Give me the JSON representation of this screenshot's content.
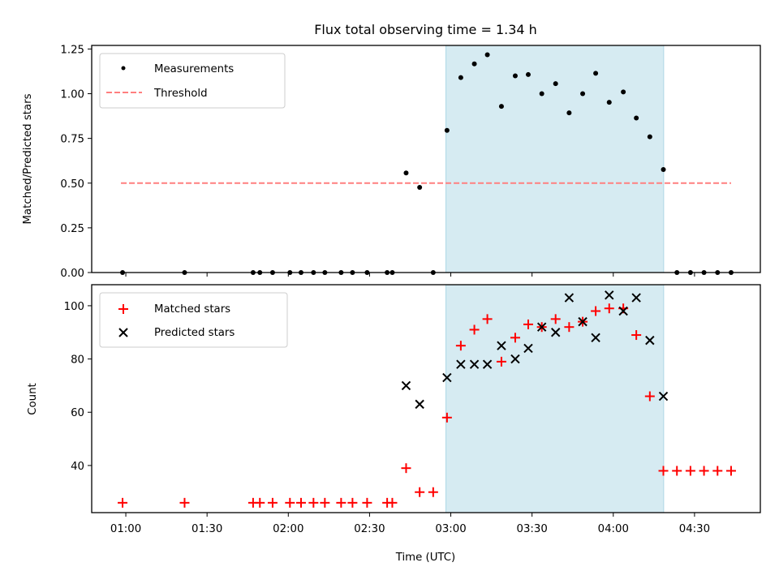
{
  "chart_data": [
    {
      "type": "scatter",
      "panel": "top",
      "title": "Flux total observing time = 1.34 h",
      "xlabel": "",
      "ylabel": "Matched/Predicted stars",
      "ylim": [
        0,
        1.27
      ],
      "yticks": [
        0,
        0.25,
        0.5,
        0.75,
        1.0,
        1.25
      ],
      "ytick_labels": [
        "0.00",
        "0.25",
        "0.50",
        "0.75",
        "1.00",
        "1.25"
      ],
      "legend": {
        "placement": "top-left",
        "entries": [
          "Measurements",
          "Threshold"
        ]
      },
      "series": [
        {
          "name": "Measurements",
          "marker": "dot",
          "color": "#000000",
          "x": [
            "00:58.8",
            "01:21.7",
            "01:47.0",
            "01:49.5",
            "01:54.2",
            "02:00.6",
            "02:04.7",
            "02:09.3",
            "02:13.5",
            "02:19.5",
            "02:23.7",
            "02:29.1",
            "02:36.5",
            "02:38.4",
            "02:43.5",
            "02:48.5",
            "02:53.5",
            "02:58.6",
            "03:03.7",
            "03:08.7",
            "03:13.5",
            "03:18.7",
            "03:23.8",
            "03:28.6",
            "03:33.6",
            "03:38.7",
            "03:43.7",
            "03:48.7",
            "03:53.5",
            "03:58.5",
            "04:03.7",
            "04:08.5",
            "04:13.5",
            "04:18.5",
            "04:23.5",
            "04:28.5",
            "04:33.5",
            "04:38.5",
            "04:43.5"
          ],
          "values": [
            0,
            0,
            0,
            0,
            0,
            0,
            0,
            0,
            0,
            0,
            0,
            0,
            0,
            0,
            0.557,
            0.476,
            0,
            0.795,
            1.09,
            1.167,
            1.218,
            0.929,
            1.1,
            1.107,
            1.0,
            1.056,
            0.893,
            1.0,
            1.114,
            0.952,
            1.01,
            0.864,
            0.759,
            0.576,
            0,
            0,
            0,
            0,
            0
          ]
        }
      ],
      "threshold": {
        "name": "Threshold",
        "value": 0.5,
        "color": "#ff7f7f",
        "style": "dashed",
        "x_range": [
          "00:58.2",
          "04:43.5"
        ]
      },
      "span": {
        "start": "02:58.2",
        "end": "04:18.6",
        "color": "#add8e6"
      }
    },
    {
      "type": "scatter",
      "panel": "bottom",
      "title": "",
      "xlabel": "Time (UTC)",
      "ylabel": "Count",
      "ylim": [
        22.3,
        107.9
      ],
      "yticks": [
        40,
        60,
        80,
        100
      ],
      "ytick_labels": [
        "40",
        "60",
        "80",
        "100"
      ],
      "xlim": [
        "00:47.4",
        "04:54.3"
      ],
      "xticks": [
        "01:00",
        "01:30",
        "02:00",
        "02:30",
        "03:00",
        "03:30",
        "04:00",
        "04:30"
      ],
      "legend": {
        "placement": "top-left",
        "entries": [
          "Matched stars",
          "Predicted stars"
        ]
      },
      "series": [
        {
          "name": "Matched stars",
          "marker": "plus",
          "color": "#ff0000",
          "x": [
            "00:58.8",
            "01:21.7",
            "01:47.0",
            "01:49.5",
            "01:54.2",
            "02:00.6",
            "02:04.7",
            "02:09.3",
            "02:13.5",
            "02:19.5",
            "02:23.7",
            "02:29.1",
            "02:36.5",
            "02:38.4",
            "02:43.5",
            "02:48.5",
            "02:53.5",
            "02:58.6",
            "03:03.7",
            "03:08.7",
            "03:13.5",
            "03:18.7",
            "03:23.8",
            "03:28.6",
            "03:33.6",
            "03:38.7",
            "03:43.7",
            "03:48.7",
            "03:53.5",
            "03:58.5",
            "04:03.7",
            "04:08.5",
            "04:13.5",
            "04:18.5",
            "04:23.5",
            "04:28.5",
            "04:33.5",
            "04:38.5",
            "04:43.5"
          ],
          "values": [
            26,
            26,
            26,
            26,
            26,
            26,
            26,
            26,
            26,
            26,
            26,
            26,
            26,
            26,
            39,
            30,
            30,
            58,
            85,
            91,
            95,
            79,
            88,
            93,
            92,
            95,
            92,
            94,
            98,
            99,
            99,
            89,
            66,
            38,
            38,
            38,
            38,
            38,
            38
          ]
        },
        {
          "name": "Predicted stars",
          "marker": "x",
          "color": "#000000",
          "x": [
            "02:43.5",
            "02:48.5",
            "02:58.6",
            "03:03.7",
            "03:08.7",
            "03:13.5",
            "03:18.7",
            "03:23.8",
            "03:28.6",
            "03:33.6",
            "03:38.7",
            "03:43.7",
            "03:48.7",
            "03:53.5",
            "03:58.5",
            "04:03.7",
            "04:08.5",
            "04:13.5",
            "04:18.5"
          ],
          "values": [
            70,
            63,
            73,
            78,
            78,
            78,
            85,
            80,
            84,
            92,
            90,
            103,
            94,
            88,
            104,
            98,
            103,
            87,
            66
          ]
        }
      ],
      "span": {
        "start": "02:58.2",
        "end": "04:18.6",
        "color": "#add8e6"
      }
    }
  ]
}
